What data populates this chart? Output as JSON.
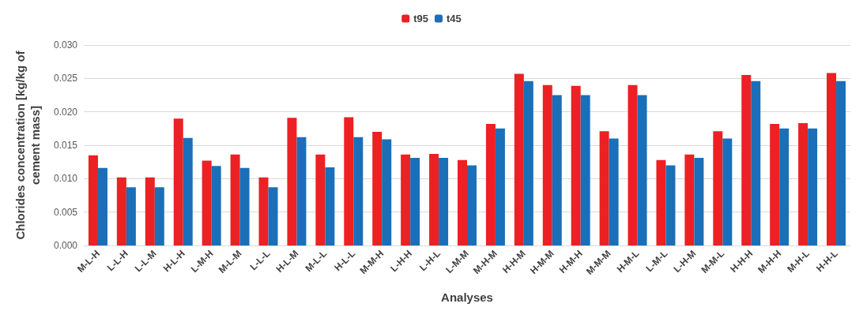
{
  "chart_data": {
    "type": "bar",
    "xlabel": "Analyses",
    "ylabel": "Chlorides concentration [kg/kg of cement mass]",
    "categories": [
      "M-L-H",
      "L-L-H",
      "L-L-M",
      "H-L-H",
      "L-M-H",
      "M-L-M",
      "L-L-L",
      "H-L-M",
      "M-L-L",
      "H-L-L",
      "M-M-H",
      "L-H-H",
      "L-H-L",
      "L-M-M",
      "M-H-M",
      "H-H-M",
      "H-M-M",
      "H-M-H",
      "M-M-M",
      "H-M-L",
      "L-M-L",
      "L-H-M",
      "M-M-L",
      "H-H-H",
      "M-H-H",
      "M-H-L",
      "H-H-L"
    ],
    "series": [
      {
        "name": "t95",
        "color": "#ed2024",
        "values": [
          0.0135,
          0.0102,
          0.0102,
          0.019,
          0.0127,
          0.0136,
          0.0102,
          0.0191,
          0.0136,
          0.0192,
          0.017,
          0.0136,
          0.0137,
          0.0128,
          0.0182,
          0.0257,
          0.024,
          0.0239,
          0.0171,
          0.024,
          0.0128,
          0.0136,
          0.0171,
          0.0255,
          0.0182,
          0.0183,
          0.0258
        ]
      },
      {
        "name": "t45",
        "color": "#1a6fb8",
        "values": [
          0.0116,
          0.0087,
          0.0087,
          0.0161,
          0.0119,
          0.0116,
          0.0087,
          0.0162,
          0.0117,
          0.0162,
          0.0159,
          0.0131,
          0.0131,
          0.012,
          0.0175,
          0.0246,
          0.0225,
          0.0225,
          0.016,
          0.0225,
          0.012,
          0.0131,
          0.016,
          0.0246,
          0.0175,
          0.0175,
          0.0246
        ]
      }
    ],
    "ylim": [
      0,
      0.03
    ],
    "yticks": [
      {
        "value": 0,
        "label": "0.000"
      },
      {
        "value": 0.005,
        "label": "0.005"
      },
      {
        "value": 0.01,
        "label": "0.010"
      },
      {
        "value": 0.015,
        "label": "0.015"
      },
      {
        "value": 0.02,
        "label": "0.020"
      },
      {
        "value": 0.025,
        "label": "0.025"
      },
      {
        "value": 0.03,
        "label": "0.030"
      }
    ],
    "grid": "y",
    "legend": "top"
  }
}
